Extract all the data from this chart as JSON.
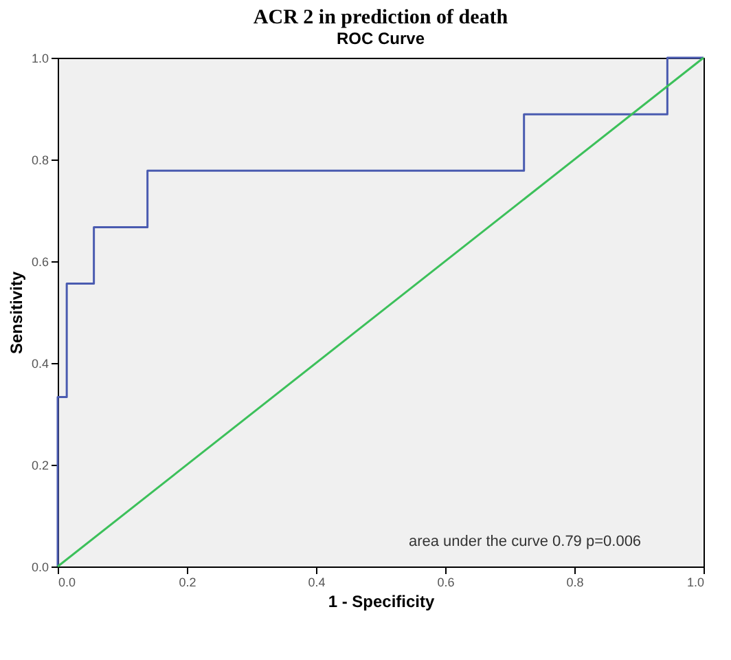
{
  "chart_data": {
    "type": "step",
    "title": "ACR 2 in prediction of death",
    "subtitle": "ROC Curve",
    "xlabel": "1 - Specificity",
    "ylabel": "Sensitivity",
    "series": [
      {
        "color": "#4a5bb0",
        "x": [
          0,
          0,
          0.014,
          0.056,
          0.139,
          0.722,
          0.944,
          1
        ],
        "values": [
          0,
          0.333,
          0.556,
          0.667,
          0.778,
          0.889,
          1,
          1
        ]
      },
      {
        "type": "line",
        "color": "#3cc05a",
        "x": [
          0,
          1
        ],
        "values": [
          0,
          1
        ]
      }
    ],
    "xlim": [
      0,
      1
    ],
    "ylim": [
      0,
      1
    ],
    "xticks": [
      {
        "value": 0,
        "label": "0.0"
      },
      {
        "value": 0.2,
        "label": "0.2"
      },
      {
        "value": 0.4,
        "label": "0.4"
      },
      {
        "value": 0.6,
        "label": "0.6"
      },
      {
        "value": 0.8,
        "label": "0.8"
      },
      {
        "value": 1,
        "label": "1.0"
      }
    ],
    "yticks": [
      {
        "value": 0,
        "label": "0.0"
      },
      {
        "value": 0.2,
        "label": "0.2"
      },
      {
        "value": 0.4,
        "label": "0.4"
      },
      {
        "value": 0.6,
        "label": "0.6"
      },
      {
        "value": 0.8,
        "label": "0.8"
      },
      {
        "value": 1,
        "label": "1.0"
      }
    ],
    "annotations": [
      "area under the curve 0.79 p=0.006"
    ],
    "grid": false,
    "marker": "none",
    "line_style": "solid"
  }
}
